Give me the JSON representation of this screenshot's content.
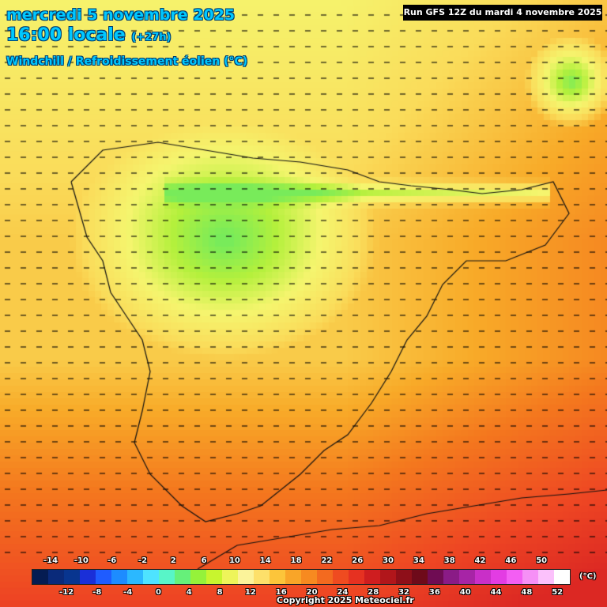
{
  "header": {
    "date_line": "mercredi 5 novembre 2025",
    "time_line": "16:00 locale",
    "offset": "(+27h)",
    "variable": "Windchill / Refroidissement éolien (°C)",
    "run": "Run GFS 12Z du mardi 4 novembre 2025"
  },
  "legend": {
    "top_ticks": [
      "-14",
      "-10",
      "-6",
      "-2",
      "2",
      "6",
      "10",
      "14",
      "18",
      "22",
      "26",
      "30",
      "34",
      "38",
      "42",
      "46",
      "50"
    ],
    "bottom_ticks": [
      "-12",
      "-8",
      "-4",
      "0",
      "4",
      "8",
      "12",
      "16",
      "20",
      "24",
      "28",
      "32",
      "36",
      "40",
      "44",
      "48",
      "52"
    ],
    "unit": "(°C)",
    "colors": [
      "#051c52",
      "#0a2a7a",
      "#08358f",
      "#1a2fd8",
      "#1f5cff",
      "#1d8cff",
      "#2bb8ff",
      "#4ee3ff",
      "#58f5c8",
      "#66f07a",
      "#95f23a",
      "#c8f52e",
      "#eef45a",
      "#fbf39a",
      "#fde06a",
      "#fcc53a",
      "#f9a528",
      "#f78a20",
      "#f36a1f",
      "#ef4b20",
      "#e63121",
      "#cf1d1f",
      "#b1161b",
      "#8e0f19",
      "#6e0a1a",
      "#6f0c53",
      "#8a1b86",
      "#a724a6",
      "#c92fc8",
      "#e33ce3",
      "#f35ef3",
      "#f690f6",
      "#fbc1fb",
      "#ffffff"
    ]
  },
  "copyright": "Copyright 2025 Meteociel.fr"
}
